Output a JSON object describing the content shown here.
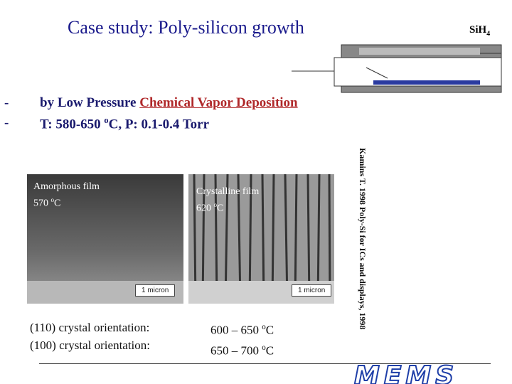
{
  "title": "Case study: Poly-silicon growth",
  "gas": {
    "text": "SiH",
    "sub": "4"
  },
  "bullets": [
    {
      "marker": "-",
      "text": "by Low Pressure ",
      "link": "Chemical Vapor Deposition"
    },
    {
      "marker": "-",
      "text": "T: 580-650 ",
      "sup": "o",
      "tail": "C, P: 0.1-0.4 Torr"
    }
  ],
  "images": [
    {
      "label": "Amorphous film",
      "temp": "570 ",
      "sup": "o",
      "unit": "C",
      "scale": "1 micron"
    },
    {
      "label": "Crystalline film",
      "temp": "620 ",
      "sup": "o",
      "unit": "C",
      "scale": "1 micron"
    }
  ],
  "citation": "Kamins T. 1998 Poly-Si for ICs and displays, 1998",
  "orientations": [
    {
      "label": "(110)  crystal orientation:",
      "range": "600 – 650 ",
      "sup": "o",
      "unit": "C"
    },
    {
      "label": "(100)  crystal orientation:",
      "range": "650 – 700 ",
      "sup": "o",
      "unit": "C"
    }
  ],
  "logo": "MEMS"
}
